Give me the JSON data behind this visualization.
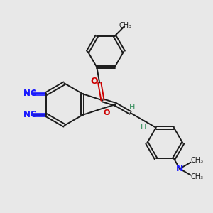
{
  "bg_color": "#e8e8e8",
  "bond_color": "#1a1a1a",
  "cn_color": "#1a1aff",
  "o_color": "#cc0000",
  "n_color": "#1a1aff",
  "h_color": "#2e8b57",
  "figsize": [
    3.0,
    3.0
  ],
  "dpi": 100,
  "xlim": [
    0,
    10
  ],
  "ylim": [
    0,
    10
  ]
}
